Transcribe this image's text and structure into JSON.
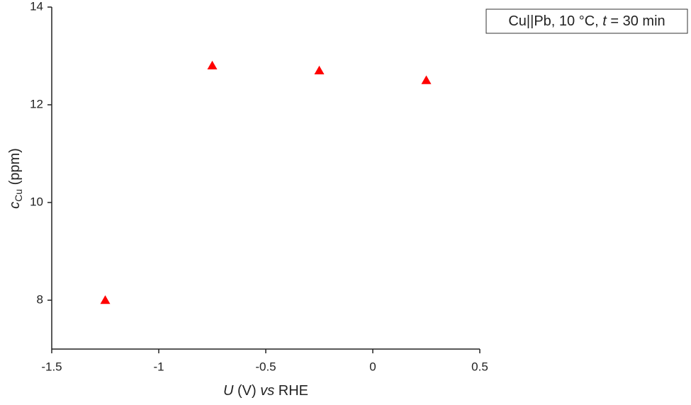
{
  "chart_data": {
    "type": "scatter",
    "x": [
      -1.25,
      -0.75,
      -0.25,
      0.25
    ],
    "values": [
      8,
      12.8,
      12.7,
      12.5
    ],
    "color": "#ff0000",
    "marker": "triangle",
    "xlim": [
      -1.5,
      0.5
    ],
    "xticks": [
      -1.5,
      -1,
      -0.5,
      0,
      0.5
    ],
    "ylim": [
      7,
      14
    ],
    "yticks": [
      8,
      10,
      12,
      14
    ],
    "x_label": [
      "U",
      " (V) ",
      "vs",
      " RHE"
    ],
    "y_label": [
      "c",
      "Cu",
      " (ppm)"
    ],
    "annotation": [
      "Cu||Pb, 10 °C, ",
      "t",
      " = 30 min"
    ]
  }
}
